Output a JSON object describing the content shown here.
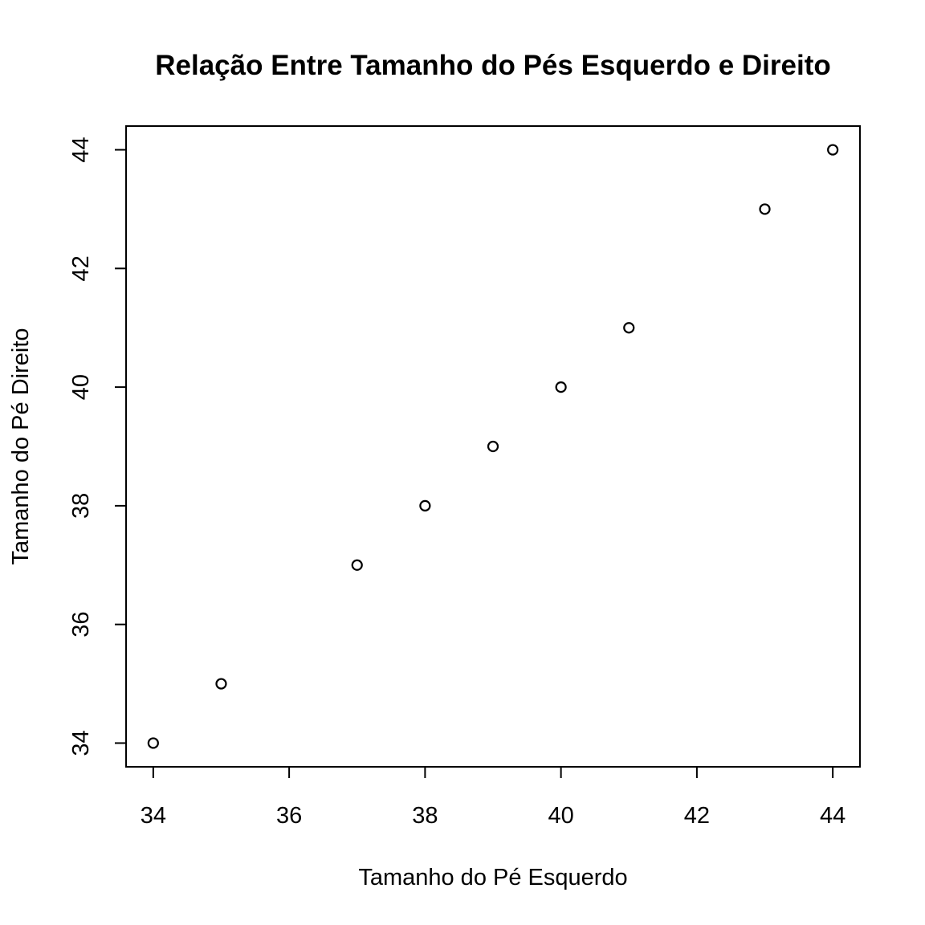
{
  "chart_data": {
    "type": "scatter",
    "title": "Relação Entre Tamanho do Pés Esquerdo e Direito",
    "xlabel": "Tamanho do Pé Esquerdo",
    "ylabel": "Tamanho do Pé Direito",
    "xlim": [
      33.6,
      44.4
    ],
    "ylim": [
      33.6,
      44.4
    ],
    "xticks": [
      34,
      36,
      38,
      40,
      42,
      44
    ],
    "yticks": [
      34,
      36,
      38,
      40,
      42,
      44
    ],
    "xtick_labels": [
      "34",
      "36",
      "38",
      "40",
      "42",
      "44"
    ],
    "ytick_labels": [
      "34",
      "36",
      "38",
      "40",
      "42",
      "44"
    ],
    "grid": false,
    "legend": "none",
    "marker": "open-circle",
    "color": "#000000",
    "points": [
      {
        "x": 34,
        "y": 34
      },
      {
        "x": 35,
        "y": 35
      },
      {
        "x": 37,
        "y": 37
      },
      {
        "x": 38,
        "y": 38
      },
      {
        "x": 39,
        "y": 39
      },
      {
        "x": 40,
        "y": 40
      },
      {
        "x": 41,
        "y": 41
      },
      {
        "x": 43,
        "y": 43
      },
      {
        "x": 44,
        "y": 44
      }
    ]
  }
}
